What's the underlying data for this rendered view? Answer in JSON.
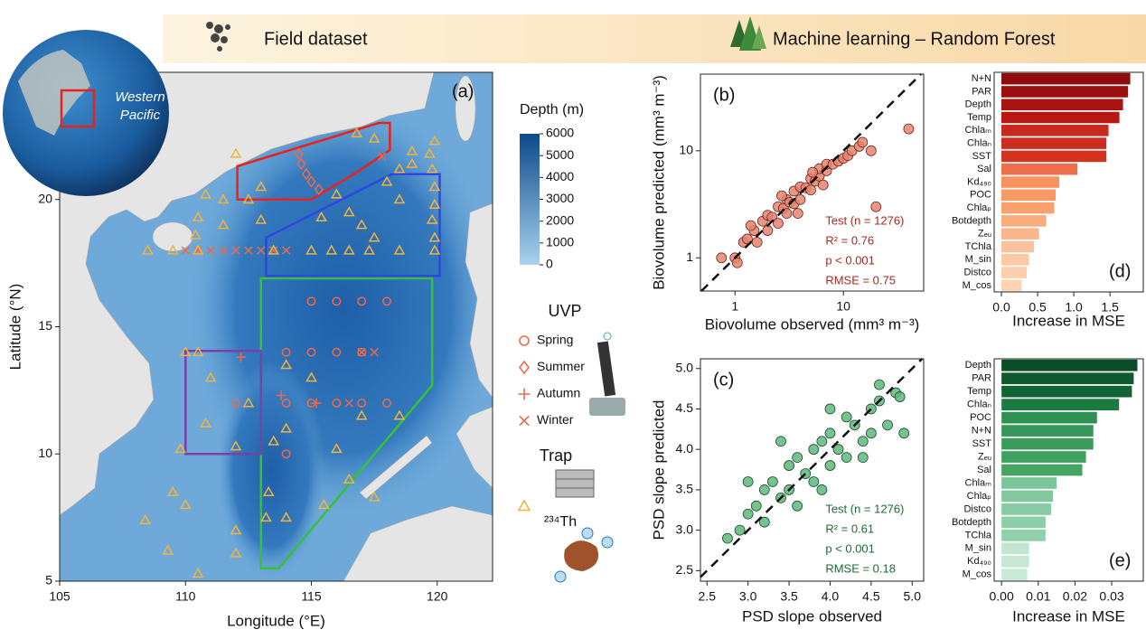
{
  "header": {
    "left": "Field dataset",
    "right": "Machine learning – Random Forest"
  },
  "globe": {
    "label": [
      "Western",
      "Pacific"
    ]
  },
  "chart_data": [
    {
      "type": "map",
      "panel": "(a)",
      "xlabel": "Longitude (°E)",
      "ylabel": "Latitude (°N)",
      "xlim": [
        105,
        122.2
      ],
      "ylim": [
        5,
        25
      ],
      "xticks": [
        105,
        110,
        115,
        120
      ],
      "yticks": [
        5,
        10,
        15,
        20
      ],
      "colorbar": {
        "title": "Depth (m)",
        "lim": [
          0,
          6000
        ],
        "ticks": [
          0,
          1000,
          2000,
          3000,
          4000,
          5000,
          6000
        ],
        "colors": [
          "#a9d2ee",
          "#0b4a8c"
        ]
      },
      "regions": [
        {
          "color": "#e8221c",
          "lon": [
            112.06,
            117.69,
            118.12,
            118.12,
            116.79,
            115,
            112.06
          ],
          "lat": [
            21.31,
            23.01,
            23.01,
            21.95,
            21.06,
            20,
            20
          ]
        },
        {
          "color": "#2f46e6",
          "lon": [
            113.2,
            118.2,
            120.1,
            120.1,
            113.2
          ],
          "lat": [
            18.5,
            21,
            21,
            17,
            17
          ]
        },
        {
          "color": "#35c235",
          "lon": [
            113,
            119.8,
            119.8,
            113.7,
            113
          ],
          "lat": [
            16.9,
            16.9,
            12.7,
            5.5,
            5.5
          ]
        },
        {
          "color": "#7b3fa8",
          "lon": [
            110,
            113,
            113,
            110
          ],
          "lat": [
            14.05,
            14.05,
            10,
            10
          ]
        }
      ],
      "legend_groups": [
        "UVP",
        "Trap",
        "²³⁴Th"
      ],
      "series": [
        {
          "name": "Spring",
          "marker": "circle",
          "color": "#ee6a4a",
          "x": [
            115,
            116,
            117,
            118,
            114,
            115,
            116,
            117,
            112,
            114,
            115,
            116,
            117,
            118,
            114
          ],
          "y": [
            16,
            16,
            16,
            16,
            14,
            14,
            14,
            14,
            12,
            12,
            12,
            12,
            12,
            12,
            10
          ]
        },
        {
          "name": "Summer",
          "marker": "diamond",
          "color": "#ee6a4a",
          "x": [
            114.5,
            114.6,
            114.8,
            115,
            115.3
          ],
          "y": [
            21.8,
            21.4,
            21,
            20.7,
            20.4
          ]
        },
        {
          "name": "Autumn",
          "marker": "plus",
          "color": "#ee6a4a",
          "x": [
            112.2,
            113.8,
            115.2
          ],
          "y": [
            13.8,
            12.3,
            12
          ]
        },
        {
          "name": "Winter",
          "marker": "cross",
          "color": "#ee6a4a",
          "x": [
            110,
            110.5,
            111,
            111.5,
            112,
            112.5,
            113,
            113.5,
            114,
            117.8,
            117,
            117.5,
            116.5
          ],
          "y": [
            18,
            18,
            18,
            18,
            18,
            18,
            18,
            18,
            18,
            21.7,
            14,
            14,
            12
          ]
        },
        {
          "marker": "triangle",
          "color": "#f2b33d",
          "x": [
            119.9,
            119.7,
            119.8,
            119.9,
            119.9,
            119.8,
            119.9,
            119.9,
            119,
            118.5,
            118,
            116,
            115.4,
            116.5,
            117,
            118.5,
            117.5,
            118.5,
            117.3,
            116.5,
            115.8,
            115,
            113.5,
            113,
            112.5,
            111.5,
            110.8,
            110.5,
            110.4,
            110.5,
            109.5,
            108.5,
            111.5,
            113,
            112,
            110,
            110.5,
            111,
            110.8,
            112,
            112.5,
            113.5,
            113.3,
            113.2,
            112,
            112,
            110.5,
            109.3,
            109.5,
            110,
            109.8,
            108.4,
            114,
            115.5,
            116.5,
            117.5,
            116,
            114,
            117,
            118.5,
            115,
            114,
            119,
            117.5,
            116.8
          ],
          "y": [
            22.3,
            21.8,
            21.2,
            20.5,
            19.8,
            19.2,
            18.5,
            18,
            21.9,
            21.2,
            20.7,
            20.2,
            19.3,
            19.5,
            19,
            20,
            18.5,
            18,
            18,
            18,
            18,
            18,
            18,
            19.2,
            20,
            20,
            20.2,
            19.3,
            18.6,
            18,
            18,
            18,
            19,
            20.5,
            21.8,
            14,
            14,
            13,
            11.2,
            10.3,
            12,
            10.5,
            8.5,
            7.5,
            7,
            6.1,
            5.3,
            6.2,
            8.5,
            8,
            10.2,
            7.4,
            7.5,
            8,
            9,
            8.3,
            10.2,
            11,
            11.5,
            11.5,
            13,
            13.5,
            21.4,
            22.4,
            22.6
          ]
        }
      ]
    },
    {
      "type": "scatter",
      "panel": "(b)",
      "log": true,
      "xlabel": "Biovolume observed (mm³ m⁻³)",
      "ylabel": "Biovolume predicted (mm³ m⁻³)",
      "xlim": [
        0.48,
        55
      ],
      "ylim": [
        0.49,
        52
      ],
      "xticks": [
        1,
        10
      ],
      "yticks": [
        1,
        10
      ],
      "color": "#e8826f",
      "edge_color": "#6b2a22",
      "annotation_color": "#a42a20",
      "annotations": [
        "Test (n = 1276)",
        "R² = 0.76",
        "p < 0.001",
        "RMSE = 0.75"
      ],
      "x": [
        0.75,
        1,
        1.05,
        1.2,
        1.3,
        1.5,
        1.6,
        1.8,
        2,
        2,
        2.2,
        2.5,
        2.5,
        2.8,
        3,
        3,
        3.2,
        3.5,
        3.5,
        4,
        4,
        4.5,
        5,
        5,
        5.5,
        6,
        6,
        7,
        7,
        8,
        9,
        10,
        11,
        12,
        14,
        15,
        18,
        20,
        40,
        1.4,
        2.7,
        3.8,
        5.2,
        6.5
      ],
      "y": [
        1,
        1,
        0.9,
        1.4,
        1.5,
        1.8,
        1.4,
        2.2,
        1.8,
        2.5,
        2.4,
        2.1,
        3,
        2.9,
        2.6,
        3.5,
        3.3,
        3.2,
        4.2,
        3.5,
        4.6,
        4.5,
        4.3,
        5.5,
        5.2,
        5.8,
        6.8,
        6.5,
        7.5,
        7.5,
        8,
        8.5,
        9,
        10,
        11,
        12,
        10,
        3,
        16,
        2.0,
        3.8,
        2.6,
        6.3,
        4.8
      ]
    },
    {
      "type": "scatter",
      "panel": "(c)",
      "log": false,
      "xlabel": "PSD slope observed",
      "ylabel": "PSD slope predicted",
      "xlim": [
        2.42,
        5.14
      ],
      "ylim": [
        2.37,
        5.12
      ],
      "xticks": [
        2.5,
        {
          "value": 3,
          "label": "3.0"
        },
        3.5,
        {
          "value": 4,
          "label": "4.0"
        },
        4.5,
        {
          "value": 5,
          "label": "5.0"
        }
      ],
      "yticks": [
        2.5,
        {
          "value": 3,
          "label": "3.0"
        },
        3.5,
        {
          "value": 4,
          "label": "4.0"
        },
        4.5,
        {
          "value": 5,
          "label": "5.0"
        }
      ],
      "color": "#5cb87e",
      "edge_color": "#1e4a2c",
      "annotation_color": "#1e6a36",
      "annotations": [
        "Test (n = 1276)",
        "R² = 0.61",
        "p < 0.001",
        "RMSE = 0.18"
      ],
      "x": [
        2.75,
        2.9,
        3.0,
        3.1,
        3.2,
        3.3,
        3.4,
        3.5,
        3.5,
        3.6,
        3.7,
        3.8,
        3.8,
        3.9,
        4.0,
        4.0,
        4.1,
        4.2,
        4.2,
        4.3,
        4.4,
        4.5,
        4.5,
        4.6,
        4.7,
        4.8,
        4.9,
        3.0,
        3.2,
        3.6,
        4.0,
        4.4,
        3.4,
        3.9,
        4.6,
        4.85
      ],
      "y": [
        2.9,
        3.0,
        3.2,
        3.3,
        3.5,
        3.6,
        3.4,
        3.8,
        3.5,
        3.9,
        3.7,
        4.0,
        3.6,
        4.1,
        4.2,
        3.8,
        4.0,
        4.4,
        3.9,
        4.3,
        4.1,
        4.5,
        4.2,
        4.6,
        4.3,
        4.7,
        4.2,
        3.6,
        3.1,
        3.3,
        4.5,
        3.9,
        4.1,
        3.5,
        4.8,
        4.65
      ]
    },
    {
      "type": "barh",
      "panel": "(d)",
      "xlabel": "Increase in MSE",
      "xlim": [
        -0.1,
        1.96
      ],
      "xticks": [
        {
          "value": 0,
          "label": "0.0"
        },
        0.5,
        {
          "value": 1,
          "label": "1.0"
        },
        1.5
      ],
      "categories": [
        "N+N",
        "PAR",
        "Depth",
        "Temp",
        "Chlaₘ",
        "Chlaₙ",
        "SST",
        "Sal",
        "Kd₄₉₀",
        "POC",
        "Chlaₚ",
        "Botdepth",
        "Zₑᵤ",
        "TChla",
        "M_sin",
        "Distco",
        "M_cos"
      ],
      "values": [
        1.78,
        1.75,
        1.68,
        1.63,
        1.48,
        1.45,
        1.45,
        1.05,
        0.8,
        0.75,
        0.73,
        0.62,
        0.52,
        0.45,
        0.38,
        0.35,
        0.28
      ],
      "colors": [
        "#8e0c0c",
        "#9a1010",
        "#a8140f",
        "#b8180f",
        "#c8281d",
        "#cc2d20",
        "#d3321f",
        "#ee6d4a",
        "#f6935f",
        "#f79a66",
        "#f8a16f",
        "#f9ac7e",
        "#fab78c",
        "#fbc19b",
        "#fcc9a5",
        "#fcceab",
        "#fdd3b2"
      ]
    },
    {
      "type": "barh",
      "panel": "(e)",
      "xlabel": "Increase in MSE",
      "xlim": [
        -0.002,
        0.0386
      ],
      "xticks": [
        {
          "value": 0,
          "label": "0.00"
        },
        0.01,
        0.02,
        0.03
      ],
      "categories": [
        "Depth",
        "PAR",
        "Temp",
        "Chlaₙ",
        "POC",
        "N+N",
        "SST",
        "Zₑᵤ",
        "Sal",
        "Chlaₘ",
        "Chlaₚ",
        "Distco",
        "Botdepth",
        "TChla",
        "M_sin",
        "Kd₄₉₀",
        "M_cos"
      ],
      "values": [
        0.037,
        0.036,
        0.0355,
        0.032,
        0.026,
        0.025,
        0.025,
        0.023,
        0.022,
        0.015,
        0.014,
        0.0135,
        0.012,
        0.012,
        0.0075,
        0.0075,
        0.007
      ],
      "colors": [
        "#0a4d27",
        "#0f5a2e",
        "#136435",
        "#1b7a3f",
        "#2f9252",
        "#35985a",
        "#3a9c5c",
        "#3fa05f",
        "#44a462",
        "#7dc59a",
        "#82c89f",
        "#87cba3",
        "#8ccea7",
        "#90d0ab",
        "#c2e6d2",
        "#c5e8d4",
        "#c8e9d6"
      ]
    }
  ]
}
